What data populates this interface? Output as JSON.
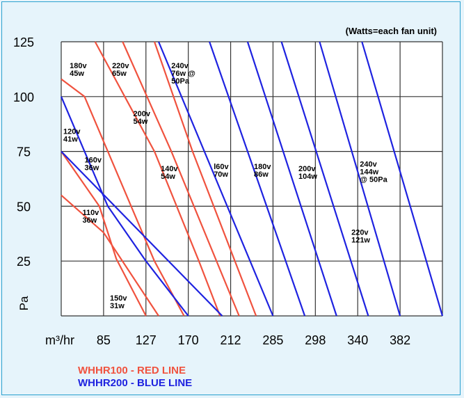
{
  "chart_data": {
    "type": "line",
    "title": "",
    "note": "(Watts=each fan unit)",
    "xlabel": "m³/hr",
    "ylabel": "Pa",
    "x_ticks": [
      "85",
      "127",
      "170",
      "212",
      "285",
      "298",
      "340",
      "382"
    ],
    "y_ticks": [
      "125",
      "100",
      "75",
      "50",
      "25"
    ],
    "ylim": [
      0,
      125
    ],
    "grid": true,
    "series": [
      {
        "color": "#f0523e",
        "values": [
          [
            0,
            55
          ],
          [
            1,
            38
          ],
          [
            2.3,
            0
          ]
        ]
      },
      {
        "color": "#f0523e",
        "values": [
          [
            0,
            75
          ],
          [
            0.9,
            50
          ],
          [
            1.3,
            26
          ],
          [
            2,
            0
          ]
        ]
      },
      {
        "color": "#f0523e",
        "values": [
          [
            0,
            108
          ],
          [
            0.55,
            100
          ],
          [
            2.2,
            25
          ],
          [
            2.9,
            0
          ]
        ]
      },
      {
        "color": "#f0523e",
        "values": [
          [
            0.8,
            125
          ],
          [
            1.5,
            100
          ],
          [
            2.2,
            75
          ],
          [
            3.25,
            25
          ],
          [
            3.75,
            0
          ]
        ]
      },
      {
        "color": "#f0523e",
        "values": [
          [
            1.45,
            125
          ],
          [
            2.6,
            75
          ],
          [
            4.2,
            0
          ]
        ]
      },
      {
        "color": "#f0523e",
        "values": [
          [
            2.2,
            125
          ],
          [
            3.1,
            75
          ],
          [
            4.6,
            0
          ]
        ]
      },
      {
        "color": "#1e22e0",
        "values": [
          [
            0,
            75
          ],
          [
            3.8,
            0
          ]
        ]
      },
      {
        "color": "#1e22e0",
        "values": [
          [
            0,
            100
          ],
          [
            1.1,
            50
          ],
          [
            2,
            25
          ],
          [
            3,
            0
          ]
        ]
      },
      {
        "color": "#1e22e0",
        "values": [
          [
            2.3,
            125
          ],
          [
            5,
            0
          ]
        ]
      },
      {
        "color": "#1e22e0",
        "values": [
          [
            3.5,
            125
          ],
          [
            5.75,
            0
          ]
        ]
      },
      {
        "color": "#1e22e0",
        "values": [
          [
            4.4,
            125
          ],
          [
            6.5,
            0
          ]
        ]
      },
      {
        "color": "#1e22e0",
        "values": [
          [
            5.2,
            125
          ],
          [
            7.25,
            0
          ]
        ]
      },
      {
        "color": "#1e22e0",
        "values": [
          [
            6.1,
            125
          ],
          [
            8,
            0
          ]
        ]
      },
      {
        "color": "#1e22e0",
        "values": [
          [
            7.1,
            125
          ],
          [
            9,
            0
          ]
        ]
      }
    ],
    "annotations": [
      {
        "lines": [
          "180v",
          "45w"
        ],
        "x": 0.2,
        "y": 113
      },
      {
        "lines": [
          "220v",
          "65w"
        ],
        "x": 1.2,
        "y": 113
      },
      {
        "lines": [
          "240v",
          "76w @",
          "50Pa"
        ],
        "x": 2.6,
        "y": 113
      },
      {
        "lines": [
          "200v",
          "54w"
        ],
        "x": 1.7,
        "y": 91
      },
      {
        "lines": [
          "120v",
          "41w"
        ],
        "x": 0.05,
        "y": 83
      },
      {
        "lines": [
          "160v",
          "36w"
        ],
        "x": 0.55,
        "y": 70
      },
      {
        "lines": [
          "140v",
          "54w"
        ],
        "x": 2.35,
        "y": 66
      },
      {
        "lines": [
          "l60v",
          "70w"
        ],
        "x": 3.6,
        "y": 67
      },
      {
        "lines": [
          "180v",
          "86w"
        ],
        "x": 4.55,
        "y": 67
      },
      {
        "lines": [
          "200v",
          "104w"
        ],
        "x": 5.6,
        "y": 66
      },
      {
        "lines": [
          "240v",
          "144w",
          "@ 50Pa"
        ],
        "x": 7.05,
        "y": 68
      },
      {
        "lines": [
          "110v",
          "36w"
        ],
        "x": 0.5,
        "y": 46
      },
      {
        "lines": [
          "220v",
          "121w"
        ],
        "x": 6.85,
        "y": 37
      },
      {
        "lines": [
          "150v",
          "31w"
        ],
        "x": 1.15,
        "y": 7
      }
    ]
  },
  "legend": [
    {
      "label": "WHHR100 - RED LINE",
      "color": "#f0523e"
    },
    {
      "label": "WHHR200 - BLUE LINE",
      "color": "#1e22e0"
    }
  ]
}
